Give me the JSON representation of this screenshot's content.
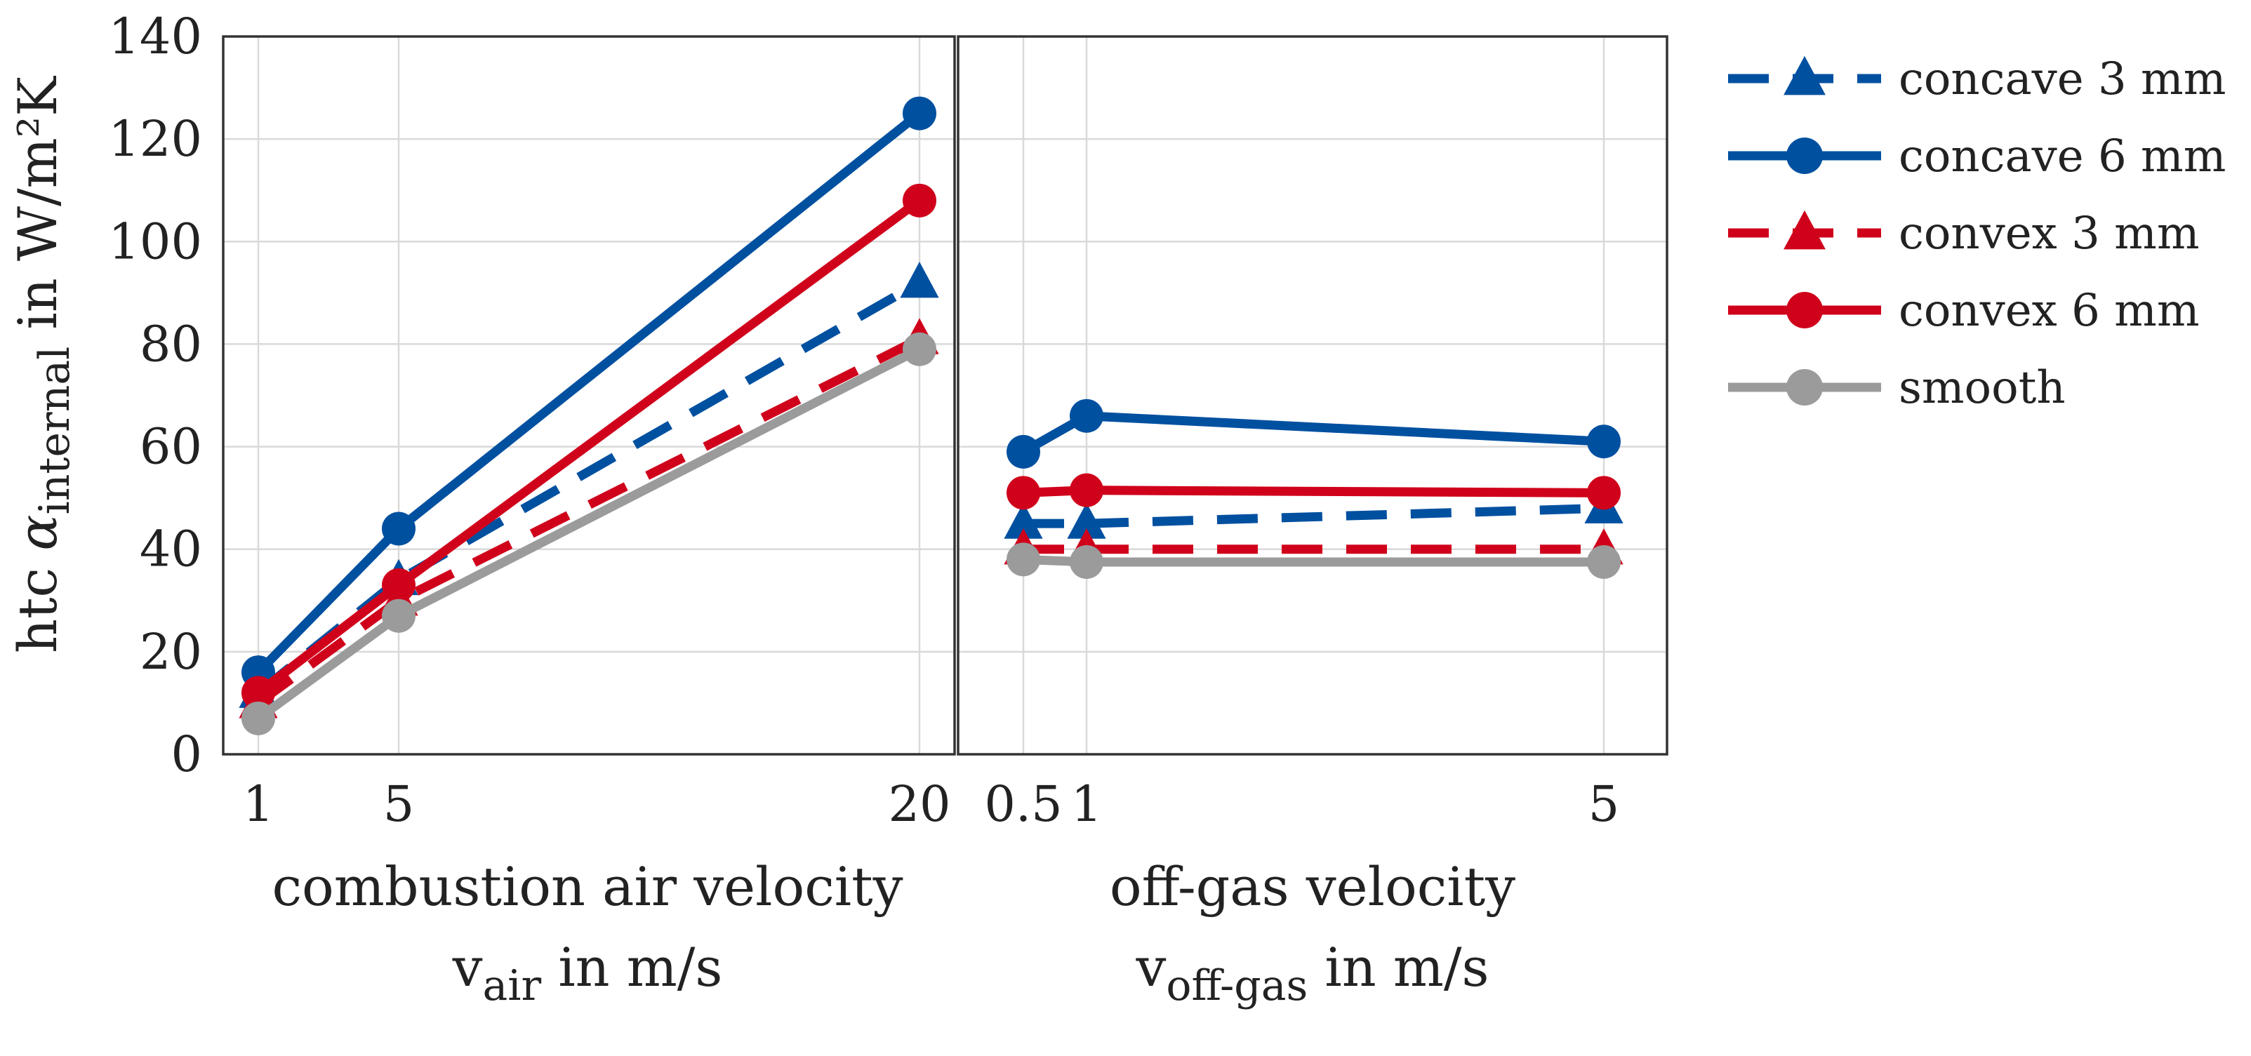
{
  "chart_data": {
    "type": "line",
    "ylabel": {
      "prefix": "htc ",
      "symbol": "α",
      "subscript": "internal",
      "suffix": " in W/m²K"
    },
    "ylim": [
      0,
      140
    ],
    "yticks": [
      0,
      20,
      40,
      60,
      80,
      100,
      120,
      140
    ],
    "panels": [
      {
        "id": "air",
        "xlabel_line1": "combustion air velocity",
        "xlabel_v": "v",
        "xlabel_sub": "air",
        "xlabel_rest": " in m/s",
        "xticks": [
          1,
          5,
          20
        ],
        "xtick_labels": [
          "1",
          "5",
          "20"
        ],
        "x": [
          1,
          5,
          20
        ],
        "series": [
          {
            "name": "concave 3 mm",
            "values": [
              12,
              34,
              92
            ]
          },
          {
            "name": "concave 6 mm",
            "values": [
              16,
              44,
              125
            ]
          },
          {
            "name": "convex 3 mm",
            "values": [
              10,
              30,
              81
            ]
          },
          {
            "name": "convex 6 mm",
            "values": [
              12,
              33,
              108
            ]
          },
          {
            "name": "smooth",
            "values": [
              7,
              27,
              79
            ]
          }
        ]
      },
      {
        "id": "offgas",
        "xlabel_line1": "off-gas velocity",
        "xlabel_v": "v",
        "xlabel_sub": "off-gas",
        "xlabel_rest": " in m/s",
        "xticks": [
          0.5,
          1,
          5
        ],
        "xtick_labels": [
          "0.5",
          "1",
          "5"
        ],
        "x": [
          0.5,
          1,
          5
        ],
        "series": [
          {
            "name": "concave 3 mm",
            "values": [
              45,
              45,
              48
            ]
          },
          {
            "name": "concave 6 mm",
            "values": [
              59,
              66,
              61
            ]
          },
          {
            "name": "convex 3 mm",
            "values": [
              40,
              40,
              40
            ]
          },
          {
            "name": "convex 6 mm",
            "values": [
              51,
              51.5,
              51
            ]
          },
          {
            "name": "smooth",
            "values": [
              38,
              37.5,
              37.5
            ]
          }
        ]
      }
    ],
    "legend": {
      "position": "right",
      "entries": [
        {
          "name": "concave 3 mm",
          "color": "#0050A0",
          "dash": true,
          "marker": "triangle"
        },
        {
          "name": "concave 6 mm",
          "color": "#0050A0",
          "dash": false,
          "marker": "circle"
        },
        {
          "name": "convex 3 mm",
          "color": "#D0021B",
          "dash": true,
          "marker": "triangle"
        },
        {
          "name": "convex 6 mm",
          "color": "#D0021B",
          "dash": false,
          "marker": "circle"
        },
        {
          "name": "smooth",
          "color": "#9B9B9B",
          "dash": false,
          "marker": "circle"
        }
      ]
    }
  }
}
